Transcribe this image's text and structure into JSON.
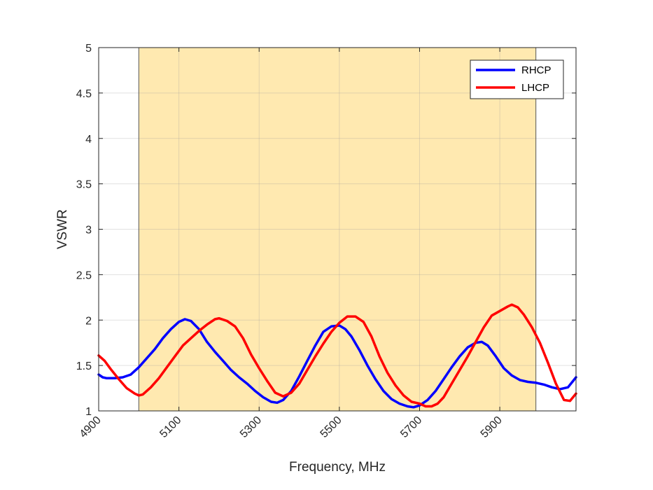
{
  "chart_data": {
    "type": "line",
    "title": "",
    "xlabel": "Frequency, MHz",
    "ylabel": "VSWR",
    "xlim": [
      4900,
      6090
    ],
    "ylim": [
      1,
      5
    ],
    "xticks": [
      4900,
      5100,
      5300,
      5500,
      5700,
      5900
    ],
    "yticks": [
      1,
      1.5,
      2,
      2.5,
      3,
      3.5,
      4,
      4.5,
      5
    ],
    "ytick_labels": [
      "1",
      "1.5",
      "2",
      "2.5",
      "3",
      "3.5",
      "4",
      "4.5",
      "5"
    ],
    "grid": true,
    "legend_position": "top-right",
    "shaded_band": {
      "x": [
        5000,
        5990
      ],
      "color": "#ffe9b0"
    },
    "series": [
      {
        "name": "RHCP",
        "color": "#0000ff",
        "x": [
          4900,
          4910,
          4920,
          4940,
          4960,
          4980,
          5000,
          5020,
          5040,
          5060,
          5080,
          5100,
          5115,
          5130,
          5150,
          5170,
          5190,
          5210,
          5230,
          5250,
          5270,
          5290,
          5310,
          5330,
          5345,
          5360,
          5380,
          5400,
          5420,
          5440,
          5460,
          5480,
          5500,
          5515,
          5530,
          5550,
          5570,
          5590,
          5610,
          5630,
          5650,
          5670,
          5685,
          5700,
          5720,
          5740,
          5760,
          5780,
          5800,
          5820,
          5840,
          5855,
          5870,
          5890,
          5910,
          5930,
          5950,
          5970,
          5990,
          6010,
          6030,
          6050,
          6070,
          6090
        ],
        "y": [
          1.4,
          1.37,
          1.36,
          1.36,
          1.37,
          1.4,
          1.48,
          1.58,
          1.68,
          1.8,
          1.9,
          1.98,
          2.01,
          1.99,
          1.9,
          1.76,
          1.65,
          1.55,
          1.45,
          1.37,
          1.3,
          1.22,
          1.15,
          1.1,
          1.09,
          1.12,
          1.22,
          1.38,
          1.55,
          1.72,
          1.87,
          1.93,
          1.94,
          1.9,
          1.82,
          1.67,
          1.5,
          1.35,
          1.22,
          1.13,
          1.08,
          1.05,
          1.04,
          1.06,
          1.12,
          1.22,
          1.35,
          1.48,
          1.6,
          1.7,
          1.75,
          1.76,
          1.72,
          1.6,
          1.47,
          1.39,
          1.34,
          1.32,
          1.31,
          1.29,
          1.26,
          1.24,
          1.26,
          1.37
        ]
      },
      {
        "name": "LHCP",
        "color": "#ff0000",
        "x": [
          4900,
          4915,
          4930,
          4950,
          4970,
          4990,
          5000,
          5010,
          5030,
          5050,
          5070,
          5090,
          5110,
          5130,
          5150,
          5170,
          5190,
          5200,
          5220,
          5240,
          5260,
          5280,
          5300,
          5320,
          5340,
          5360,
          5380,
          5400,
          5420,
          5440,
          5460,
          5480,
          5500,
          5520,
          5540,
          5560,
          5580,
          5600,
          5620,
          5640,
          5660,
          5680,
          5700,
          5715,
          5730,
          5745,
          5760,
          5780,
          5800,
          5820,
          5840,
          5860,
          5880,
          5900,
          5920,
          5930,
          5945,
          5960,
          5980,
          6000,
          6020,
          6040,
          6060,
          6075,
          6090
        ],
        "y": [
          1.61,
          1.55,
          1.46,
          1.35,
          1.25,
          1.19,
          1.17,
          1.18,
          1.26,
          1.36,
          1.48,
          1.6,
          1.72,
          1.8,
          1.88,
          1.95,
          2.01,
          2.02,
          1.99,
          1.93,
          1.8,
          1.62,
          1.47,
          1.33,
          1.2,
          1.16,
          1.2,
          1.3,
          1.45,
          1.6,
          1.74,
          1.87,
          1.97,
          2.04,
          2.04,
          1.98,
          1.82,
          1.6,
          1.42,
          1.28,
          1.17,
          1.1,
          1.08,
          1.05,
          1.05,
          1.08,
          1.15,
          1.3,
          1.45,
          1.6,
          1.76,
          1.92,
          2.05,
          2.1,
          2.15,
          2.17,
          2.14,
          2.06,
          1.92,
          1.75,
          1.53,
          1.3,
          1.12,
          1.11,
          1.19
        ]
      }
    ]
  }
}
